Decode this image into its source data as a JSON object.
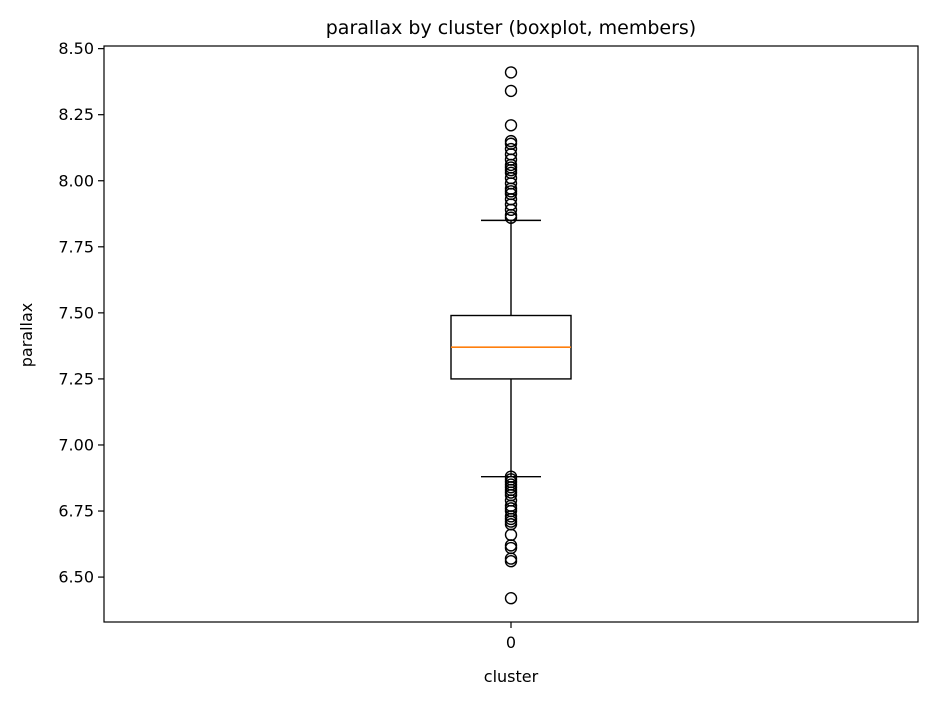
{
  "chart_data": {
    "type": "boxplot",
    "title": "parallax by cluster (boxplot, members)",
    "xlabel": "cluster",
    "ylabel": "parallax",
    "categories": [
      "0"
    ],
    "ylim": [
      6.33,
      8.51
    ],
    "yticks": [
      6.5,
      6.75,
      7.0,
      7.25,
      7.5,
      7.75,
      8.0,
      8.25,
      8.5
    ],
    "ytick_labels": [
      "6.50",
      "6.75",
      "7.00",
      "7.25",
      "7.50",
      "7.75",
      "8.00",
      "8.25",
      "8.50"
    ],
    "grid": false,
    "boxes": [
      {
        "category": "0",
        "whisker_low": 6.88,
        "q1": 7.25,
        "median": 7.37,
        "q3": 7.49,
        "whisker_high": 7.85,
        "outliers": [
          8.41,
          8.34,
          8.21,
          8.15,
          8.14,
          8.12,
          8.1,
          8.08,
          8.06,
          8.05,
          8.04,
          8.03,
          8.01,
          7.99,
          7.97,
          7.96,
          7.95,
          7.93,
          7.91,
          7.89,
          7.87,
          7.86,
          6.88,
          6.87,
          6.86,
          6.85,
          6.84,
          6.83,
          6.82,
          6.81,
          6.79,
          6.77,
          6.76,
          6.75,
          6.73,
          6.72,
          6.71,
          6.7,
          6.66,
          6.62,
          6.61,
          6.57,
          6.56,
          6.42
        ]
      }
    ],
    "colors": {
      "box": "#000000",
      "median": "#ff7f0e",
      "flier_edge": "#000000",
      "flier_face": "none"
    }
  }
}
